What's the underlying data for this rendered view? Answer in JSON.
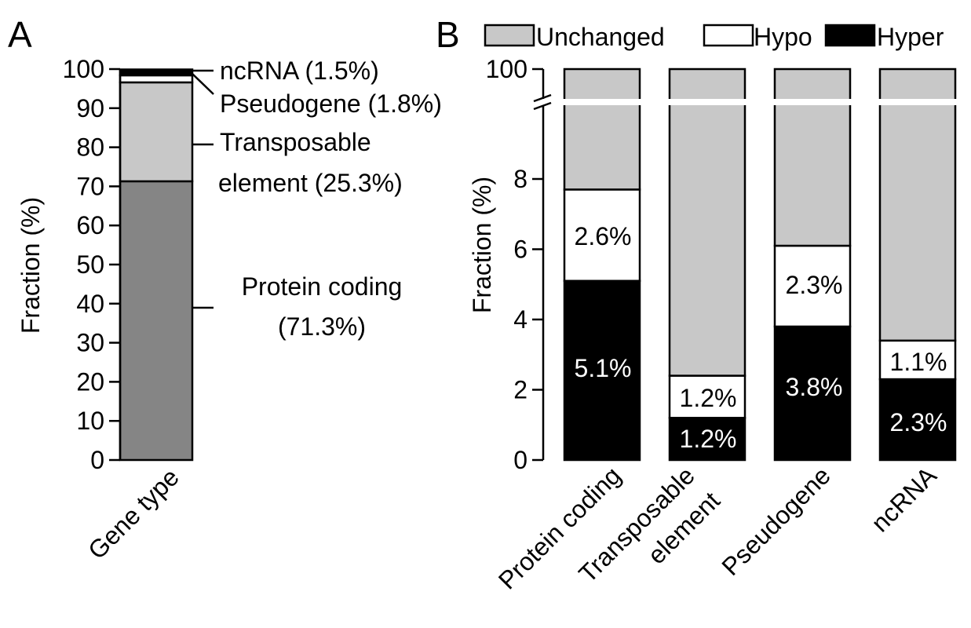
{
  "panel_a": {
    "letter": "A",
    "ylabel": "Fraction (%)",
    "xlabel": "Gene type",
    "yticks": [
      "0",
      "10",
      "20",
      "30",
      "40",
      "50",
      "60",
      "70",
      "80",
      "90",
      "100"
    ],
    "segment_labels": {
      "ncrna": "ncRNA (1.5%)",
      "pseudogene": "Pseudogene (1.8%)",
      "te_line1": "Transposable",
      "te_line2": "element (25.3%)",
      "pc_line1": "Protein coding",
      "pc_line2": "(71.3%)"
    }
  },
  "panel_b": {
    "letter": "B",
    "ylabel": "Fraction (%)",
    "yticks": [
      "0",
      "2",
      "4",
      "6",
      "8",
      "100"
    ],
    "legend": {
      "unchanged": "Unchanged",
      "hypo": "Hypo",
      "hyper": "Hyper"
    },
    "categories": {
      "pc": "Protein coding",
      "te_line1": "Transposable",
      "te_line2": "element",
      "pg": "Pseudogene",
      "nc": "ncRNA"
    },
    "labels": {
      "pc_hypo": "2.6%",
      "pc_hyper": "5.1%",
      "te_hypo": "1.2%",
      "te_hyper": "1.2%",
      "pg_hypo": "2.3%",
      "pg_hyper": "3.8%",
      "nc_hypo": "1.1%",
      "nc_hyper": "2.3%"
    }
  },
  "colors": {
    "unchanged": "#c8c8c8",
    "hypo": "#ffffff",
    "hyper": "#000000",
    "protein_coding": "#858585"
  },
  "chart_data": [
    {
      "type": "bar",
      "stacked": true,
      "categories": [
        "Gene type"
      ],
      "series": [
        {
          "name": "Protein coding",
          "values": [
            71.3
          ]
        },
        {
          "name": "Transposable element",
          "values": [
            25.3
          ]
        },
        {
          "name": "Pseudogene",
          "values": [
            1.8
          ]
        },
        {
          "name": "ncRNA",
          "values": [
            1.5
          ]
        }
      ],
      "xlabel": "Gene type",
      "ylabel": "Fraction (%)",
      "ylim": [
        0,
        100
      ]
    },
    {
      "type": "bar",
      "stacked": true,
      "categories": [
        "Protein coding",
        "Transposable element",
        "Pseudogene",
        "ncRNA"
      ],
      "series": [
        {
          "name": "Hyper",
          "values": [
            5.1,
            1.2,
            3.8,
            2.3
          ]
        },
        {
          "name": "Hypo",
          "values": [
            2.6,
            1.2,
            2.3,
            1.1
          ]
        },
        {
          "name": "Unchanged",
          "values": [
            92.3,
            97.6,
            93.9,
            96.6
          ]
        }
      ],
      "ylabel": "Fraction (%)",
      "ylim": [
        0,
        100
      ],
      "axis_break": true,
      "legend_position": "top"
    }
  ]
}
